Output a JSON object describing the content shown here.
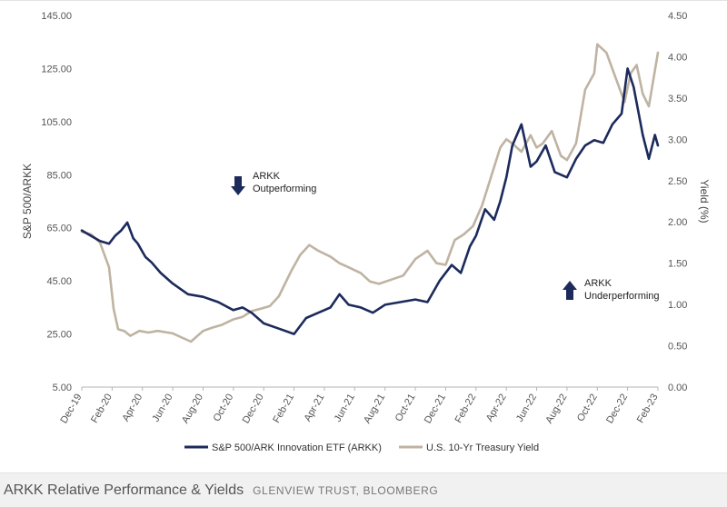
{
  "chart_data": {
    "type": "line",
    "title": "",
    "x_categories": [
      "Dec-19",
      "Feb-20",
      "Apr-20",
      "Jun-20",
      "Aug-20",
      "Oct-20",
      "Dec-20",
      "Feb-21",
      "Apr-21",
      "Jun-21",
      "Aug-21",
      "Oct-21",
      "Dec-21",
      "Feb-22",
      "Apr-22",
      "Jun-22",
      "Aug-22",
      "Oct-22",
      "Dec-22",
      "Feb-23"
    ],
    "ylabel_left": "S&P 500/ARKK",
    "ylabel_right": "Yield (%)",
    "y_left_ticks": [
      "145.00",
      "125.00",
      "105.00",
      "85.00",
      "65.00",
      "45.00",
      "25.00",
      "5.00"
    ],
    "y_right_ticks": [
      "4.50",
      "4.00",
      "3.50",
      "3.00",
      "2.50",
      "2.00",
      "1.50",
      "1.00",
      "0.50",
      "0.00"
    ],
    "y_left_range": [
      5,
      145
    ],
    "y_right_range": [
      0,
      4.5
    ],
    "series": [
      {
        "name": "S&P 500/ARK Innovation ETF (ARKK)",
        "axis": "left",
        "color": "#1c2a5c",
        "x": [
          0,
          0.3,
          0.6,
          0.9,
          1.1,
          1.3,
          1.5,
          1.7,
          1.85,
          2.0,
          2.1,
          2.3,
          2.6,
          3.0,
          3.5,
          4.0,
          4.5,
          5.0,
          5.3,
          5.6,
          6.0,
          6.5,
          7.0,
          7.4,
          7.8,
          8.2,
          8.5,
          8.8,
          9.2,
          9.6,
          10.0,
          10.5,
          11.0,
          11.4,
          11.8,
          12.2,
          12.5,
          12.8,
          13.0,
          13.3,
          13.6,
          13.8,
          14.0,
          14.2,
          14.5,
          14.8,
          15.0,
          15.3,
          15.6,
          16.0,
          16.3,
          16.6,
          16.9,
          17.2,
          17.5,
          17.8,
          18.0,
          18.2,
          18.5,
          18.7,
          18.9,
          19.0
        ],
        "values": [
          64,
          62,
          60,
          59,
          62,
          64,
          67,
          61,
          59,
          56,
          54,
          52,
          48,
          44,
          40,
          39,
          37,
          34,
          35,
          33,
          29,
          27,
          25,
          31,
          33,
          35,
          40,
          36,
          35,
          33,
          36,
          37,
          38,
          37,
          45,
          51,
          48,
          58,
          62,
          72,
          68,
          75,
          84,
          96,
          104,
          88,
          90,
          96,
          86,
          84,
          91,
          96,
          98,
          97,
          104,
          108,
          125,
          118,
          100,
          91,
          100,
          96
        ]
      },
      {
        "name": "U.S. 10-Yr Treasury Yield",
        "axis": "right",
        "color": "#bfb3a2",
        "x": [
          0,
          0.3,
          0.6,
          0.9,
          1.05,
          1.2,
          1.4,
          1.6,
          1.9,
          2.2,
          2.5,
          3.0,
          3.3,
          3.6,
          4.0,
          4.3,
          4.6,
          5.0,
          5.3,
          5.6,
          5.9,
          6.2,
          6.5,
          6.9,
          7.2,
          7.5,
          7.8,
          8.2,
          8.5,
          8.8,
          9.2,
          9.5,
          9.8,
          10.2,
          10.6,
          11.0,
          11.4,
          11.7,
          12.0,
          12.3,
          12.6,
          12.9,
          13.2,
          13.5,
          13.8,
          14.0,
          14.2,
          14.5,
          14.8,
          15.0,
          15.2,
          15.5,
          15.8,
          16.0,
          16.3,
          16.6,
          16.9,
          17.0,
          17.3,
          17.6,
          17.9,
          18.1,
          18.3,
          18.5,
          18.7,
          19.0
        ],
        "values": [
          1.88,
          1.85,
          1.75,
          1.45,
          0.95,
          0.7,
          0.68,
          0.62,
          0.68,
          0.66,
          0.68,
          0.65,
          0.6,
          0.55,
          0.68,
          0.72,
          0.75,
          0.82,
          0.85,
          0.92,
          0.95,
          0.98,
          1.1,
          1.4,
          1.6,
          1.72,
          1.65,
          1.58,
          1.5,
          1.45,
          1.38,
          1.28,
          1.25,
          1.3,
          1.35,
          1.55,
          1.65,
          1.5,
          1.48,
          1.78,
          1.85,
          1.95,
          2.2,
          2.55,
          2.9,
          3.0,
          2.95,
          2.85,
          3.05,
          2.9,
          2.95,
          3.1,
          2.8,
          2.75,
          2.95,
          3.6,
          3.8,
          4.15,
          4.05,
          3.75,
          3.45,
          3.8,
          3.9,
          3.55,
          3.4,
          4.05
        ]
      }
    ],
    "annotations": [
      {
        "direction": "down",
        "lines": [
          "ARKK",
          "Outperforming"
        ]
      },
      {
        "direction": "up",
        "lines": [
          "ARKK",
          "Underperforming"
        ]
      }
    ],
    "legend_position": "bottom"
  },
  "caption": {
    "title": "ARKK Relative Performance & Yields",
    "source": "GLENVIEW TRUST, BLOOMBERG"
  }
}
